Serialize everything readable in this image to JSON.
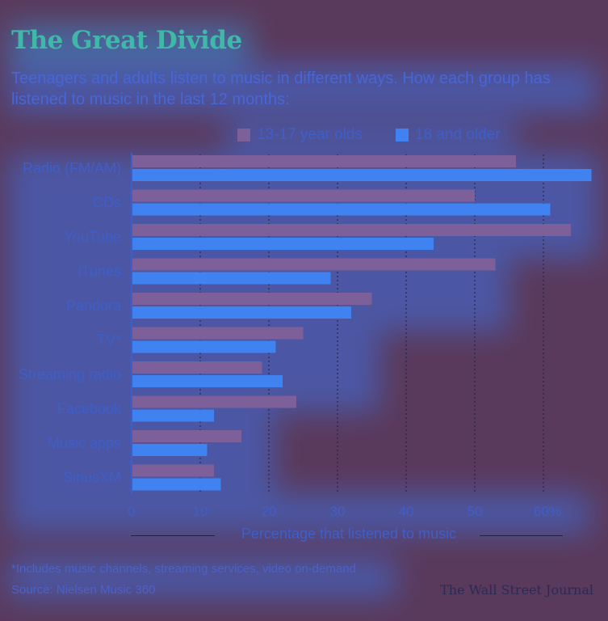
{
  "title": "The Great Divide",
  "subtitle": "Teenagers and adults listen to music in different ways. How each group has listened to music in the last 12 months:",
  "legend": {
    "teens": "13-17 year olds",
    "adults": "18 and older"
  },
  "colors": {
    "background": "#5a3a5c",
    "teens": "#7d5f9a",
    "adults": "#3f82f0",
    "title": "#3fb8a8",
    "text": "#4766d8"
  },
  "chart_data": {
    "type": "bar",
    "orientation": "horizontal",
    "categories": [
      "Radio (FM/AM)",
      "CDs",
      "YouTube",
      "iTunes",
      "Pandora",
      "TV*",
      "Streaming radio",
      "Facebook",
      "Music apps",
      "SiriusXM"
    ],
    "series": [
      {
        "name": "13-17 year olds",
        "values": [
          56,
          50,
          64,
          53,
          35,
          25,
          19,
          24,
          16,
          12
        ]
      },
      {
        "name": "18 and older",
        "values": [
          67,
          61,
          44,
          29,
          32,
          21,
          22,
          12,
          11,
          13
        ]
      }
    ],
    "xticks": [
      "0",
      "10",
      "20",
      "30",
      "40",
      "50",
      "60%"
    ],
    "xlim": [
      0,
      66
    ],
    "xlabel": "Percentage that listened to music",
    "grid": "vertical dotted",
    "legend_position": "top-right"
  },
  "footnote": "*Includes music channels, streaming services, video on-demand",
  "source": "Source: Nielsen Music 360",
  "credit": "The Wall Street Journal"
}
